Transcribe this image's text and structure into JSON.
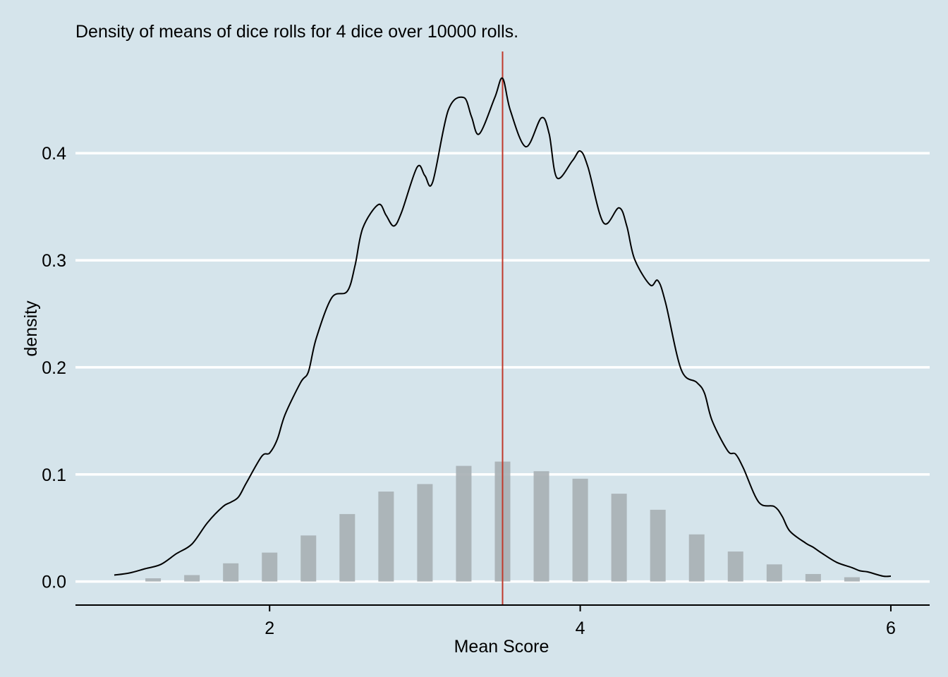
{
  "chart_data": {
    "type": "bar",
    "title": "Density of means of dice rolls for 4 dice over 10000 rolls.",
    "xlabel": "Mean Score",
    "ylabel": "density",
    "xlim": [
      0.75,
      6.25
    ],
    "ylim": [
      -0.022,
      0.495
    ],
    "x_ticks": [
      2,
      4,
      6
    ],
    "x_tick_labels": [
      "2",
      "4",
      "6"
    ],
    "y_ticks": [
      0,
      0.1,
      0.2,
      0.3,
      0.4
    ],
    "y_tick_labels": [
      "0.0",
      "0.1",
      "0.2",
      "0.3",
      "0.4"
    ],
    "grid": "horizontal",
    "mean_line": 3.5,
    "histogram": {
      "x": [
        1.25,
        1.5,
        1.75,
        2.0,
        2.25,
        2.5,
        2.75,
        3.0,
        3.25,
        3.5,
        3.75,
        4.0,
        4.25,
        4.5,
        4.75,
        5.0,
        5.25,
        5.5,
        5.75
      ],
      "values": [
        0.003,
        0.006,
        0.017,
        0.027,
        0.043,
        0.063,
        0.084,
        0.091,
        0.108,
        0.112,
        0.103,
        0.096,
        0.082,
        0.067,
        0.044,
        0.028,
        0.016,
        0.007,
        0.004
      ]
    },
    "density": {
      "x": [
        1.0,
        1.1,
        1.2,
        1.3,
        1.4,
        1.5,
        1.6,
        1.7,
        1.75,
        1.8,
        1.85,
        1.95,
        2.0,
        2.05,
        2.1,
        2.2,
        2.25,
        2.3,
        2.4,
        2.5,
        2.55,
        2.6,
        2.7,
        2.75,
        2.8,
        2.85,
        2.95,
        3.0,
        3.05,
        3.15,
        3.25,
        3.3,
        3.35,
        3.45,
        3.5,
        3.55,
        3.65,
        3.75,
        3.8,
        3.85,
        3.95,
        4.0,
        4.05,
        4.15,
        4.25,
        4.3,
        4.35,
        4.45,
        4.5,
        4.55,
        4.65,
        4.75,
        4.8,
        4.85,
        4.95,
        5.0,
        5.05,
        5.15,
        5.25,
        5.3,
        5.35,
        5.45,
        5.5,
        5.55,
        5.65,
        5.75,
        5.8,
        5.85,
        5.95,
        6.0
      ],
      "y": [
        0.006,
        0.008,
        0.012,
        0.016,
        0.026,
        0.035,
        0.055,
        0.07,
        0.074,
        0.079,
        0.092,
        0.117,
        0.12,
        0.133,
        0.156,
        0.186,
        0.196,
        0.227,
        0.265,
        0.271,
        0.295,
        0.33,
        0.352,
        0.342,
        0.332,
        0.345,
        0.387,
        0.379,
        0.373,
        0.44,
        0.452,
        0.434,
        0.418,
        0.452,
        0.47,
        0.44,
        0.406,
        0.433,
        0.418,
        0.377,
        0.393,
        0.402,
        0.387,
        0.335,
        0.349,
        0.332,
        0.301,
        0.277,
        0.281,
        0.26,
        0.198,
        0.186,
        0.176,
        0.15,
        0.122,
        0.119,
        0.106,
        0.074,
        0.07,
        0.061,
        0.047,
        0.036,
        0.032,
        0.027,
        0.018,
        0.013,
        0.01,
        0.009,
        0.005,
        0.005
      ]
    },
    "colors": {
      "background": "#d5e4eb",
      "grid": "#ffffff",
      "bars": "#a7afb4",
      "density_line": "#000000",
      "mean_line": "#c0392b",
      "axis": "#000000"
    }
  }
}
